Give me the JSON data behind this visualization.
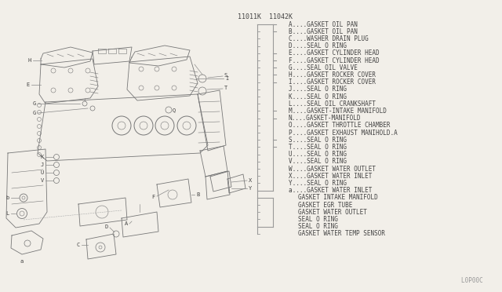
{
  "bg_color": "#f2efe9",
  "line_color": "#999999",
  "text_color": "#444444",
  "dark_color": "#555555",
  "part_number_left": "11011K",
  "part_number_right": "11042K",
  "footer_text": "L0P00C ",
  "legend_items": [
    {
      "label": "A",
      "desc": "GASKET OIL PAN",
      "has_tick": true,
      "indent": 1
    },
    {
      "label": "B",
      "desc": "GASKET OIL PAN",
      "has_tick": true,
      "indent": 1
    },
    {
      "label": "C",
      "desc": "WASHER DRAIN PLUG",
      "has_tick": false,
      "indent": 1
    },
    {
      "label": "D",
      "desc": "SEAL O RING",
      "has_tick": false,
      "indent": 1
    },
    {
      "label": "E",
      "desc": "GASKET CYLINDER HEAD",
      "has_tick": true,
      "indent": 1
    },
    {
      "label": "F",
      "desc": "GASKET CYLINDER HEAD",
      "has_tick": true,
      "indent": 1
    },
    {
      "label": "G",
      "desc": "SEAL OIL VALVE",
      "has_tick": true,
      "indent": 1
    },
    {
      "label": "H",
      "desc": "GASKET ROCKER COVER",
      "has_tick": true,
      "indent": 1
    },
    {
      "label": "I",
      "desc": "GASKET ROCKER COVER",
      "has_tick": true,
      "indent": 1
    },
    {
      "label": "J",
      "desc": "SEAL O RING",
      "has_tick": false,
      "indent": 1
    },
    {
      "label": "K",
      "desc": "SEAL O RING",
      "has_tick": false,
      "indent": 1
    },
    {
      "label": "L",
      "desc": "SEAL OIL CRANKSHAFT",
      "has_tick": false,
      "indent": 1
    },
    {
      "label": "M",
      "desc": "GASKET-INTAKE MANIFOLD",
      "has_tick": true,
      "indent": 1
    },
    {
      "label": "N",
      "desc": "GASKET-MANIFOLD",
      "has_tick": true,
      "indent": 1
    },
    {
      "label": "O",
      "desc": "GASKET THROTTLE CHAMBER",
      "has_tick": false,
      "indent": 1
    },
    {
      "label": "P",
      "desc": "GASKET EXHAUST MANIHOLD.A",
      "has_tick": false,
      "indent": 1
    },
    {
      "label": "S",
      "desc": "SEAL O RING",
      "has_tick": true,
      "indent": 1
    },
    {
      "label": "T",
      "desc": "SEAL O RING",
      "has_tick": true,
      "indent": 1
    },
    {
      "label": "U",
      "desc": "SEAL O RING",
      "has_tick": false,
      "indent": 1
    },
    {
      "label": "V",
      "desc": "SEAL O RING",
      "has_tick": false,
      "indent": 1
    },
    {
      "label": "W",
      "desc": "GASKET WATER OUTLET",
      "has_tick": false,
      "indent": 1
    },
    {
      "label": "X",
      "desc": "GASKET WATER INLET",
      "has_tick": false,
      "indent": 1
    },
    {
      "label": "Y",
      "desc": "SEAL O RING",
      "has_tick": false,
      "indent": 1
    },
    {
      "label": "a",
      "desc": "GASKET WATER INLET",
      "has_tick": false,
      "indent": 1
    },
    {
      "label": "",
      "desc": "GASKET INTAKE MANIFOLD",
      "has_tick": false,
      "indent": 2
    },
    {
      "label": "",
      "desc": "GASKET EGR TUBE",
      "has_tick": false,
      "indent": 2
    },
    {
      "label": "",
      "desc": "GASKET WATER OUTLET",
      "has_tick": false,
      "indent": 2
    },
    {
      "label": "",
      "desc": "SEAL O RING",
      "has_tick": false,
      "indent": 2
    },
    {
      "label": "",
      "desc": "SEAL O RING",
      "has_tick": false,
      "indent": 2
    },
    {
      "label": "",
      "desc": "GASKET WATER TEMP SENSOR",
      "has_tick": false,
      "indent": 2
    }
  ]
}
